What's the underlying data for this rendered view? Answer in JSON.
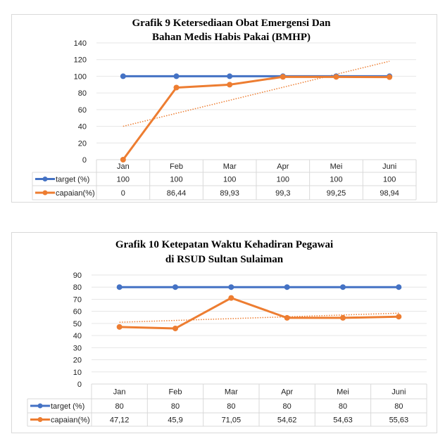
{
  "chart_data": [
    {
      "type": "line",
      "title": [
        "Grafik 9 Ketersediaan Obat Emergensi Dan",
        "Bahan Medis Habis Pakai (BMHP)"
      ],
      "categories": [
        "Jan",
        "Feb",
        "Mar",
        "Apr",
        "Mei",
        "Juni"
      ],
      "ylim": [
        0,
        140
      ],
      "yticks": [
        "0",
        "20",
        "40",
        "60",
        "80",
        "100",
        "120",
        "140"
      ],
      "ytick_values": [
        0,
        20,
        40,
        60,
        80,
        100,
        120,
        140
      ],
      "grid": true,
      "legend": "data-table-left",
      "series": [
        {
          "name": "target (%)",
          "color": "#4472c4",
          "values": [
            100,
            100,
            100,
            100,
            100,
            100
          ],
          "labels": [
            "100",
            "100",
            "100",
            "100",
            "100",
            "100"
          ]
        },
        {
          "name": "capaian(%)",
          "color": "#ed7d31",
          "values": [
            0,
            86.44,
            89.93,
            99.3,
            99.25,
            98.94
          ],
          "labels": [
            "0",
            "86,44",
            "89,93",
            "99,3",
            "99,25",
            "98,94"
          ]
        }
      ],
      "trendline": {
        "series": "capaian(%)",
        "type": "linear",
        "start": 40,
        "end": 118,
        "color": "#ed7d31"
      }
    },
    {
      "type": "line",
      "title": [
        "Grafik 10 Ketepatan Waktu Kehadiran Pegawai",
        "di RSUD Sultan Sulaiman"
      ],
      "categories": [
        "Jan",
        "Feb",
        "Mar",
        "Apr",
        "Mei",
        "Juni"
      ],
      "ylim": [
        0,
        90
      ],
      "yticks": [
        "0",
        "10",
        "20",
        "30",
        "40",
        "50",
        "60",
        "70",
        "80",
        "90"
      ],
      "ytick_values": [
        0,
        10,
        20,
        30,
        40,
        50,
        60,
        70,
        80,
        90
      ],
      "grid": true,
      "legend": "data-table-left",
      "series": [
        {
          "name": "target (%)",
          "color": "#4472c4",
          "values": [
            80,
            80,
            80,
            80,
            80,
            80
          ],
          "labels": [
            "80",
            "80",
            "80",
            "80",
            "80",
            "80"
          ]
        },
        {
          "name": "capaian(%)",
          "color": "#ed7d31",
          "values": [
            47.12,
            45.9,
            71.05,
            54.62,
            54.63,
            55.63
          ],
          "labels": [
            "47,12",
            "45,9",
            "71,05",
            "54,62",
            "54,63",
            "55,63"
          ]
        }
      ],
      "trendline": {
        "series": "capaian(%)",
        "type": "linear",
        "start": 51,
        "end": 58.5,
        "color": "#ed7d31"
      }
    }
  ]
}
